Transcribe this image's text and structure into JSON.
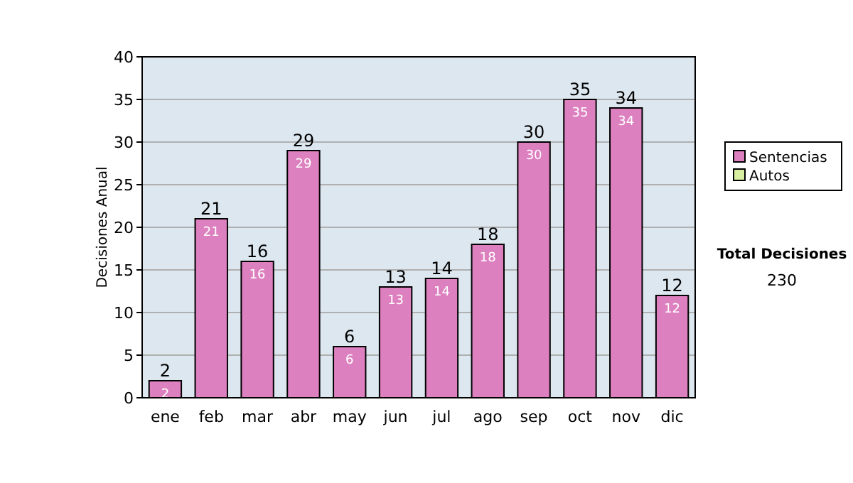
{
  "chart_data": {
    "type": "bar",
    "ylabel": "Decisiones Anual",
    "categories": [
      "ene",
      "feb",
      "mar",
      "abr",
      "may",
      "jun",
      "jul",
      "ago",
      "sep",
      "oct",
      "nov",
      "dic"
    ],
    "series": [
      {
        "name": "Sentencias",
        "color": "#dd80bf",
        "values": [
          2,
          21,
          16,
          29,
          6,
          13,
          14,
          18,
          30,
          35,
          34,
          12
        ],
        "value_labels": [
          "2",
          "21",
          "16",
          "29",
          "6",
          "13",
          "14",
          "18",
          "30",
          "35",
          "34",
          "12"
        ]
      },
      {
        "name": "Autos",
        "color": "#d8eea0",
        "values": [
          null,
          null,
          null,
          null,
          null,
          null,
          null,
          null,
          null,
          null,
          null,
          null
        ]
      }
    ],
    "stacked": true,
    "totals": [
      "2",
      "21",
      "16",
      "29",
      "6",
      "13",
      "14",
      "18",
      "30",
      "35",
      "34",
      "12"
    ],
    "ylim": [
      0,
      40
    ],
    "yticks": [
      0,
      5,
      10,
      15,
      20,
      25,
      30,
      35,
      40
    ],
    "grid": "y",
    "legend": "right",
    "annotations": [
      "Total Decisiones",
      "230"
    ]
  }
}
